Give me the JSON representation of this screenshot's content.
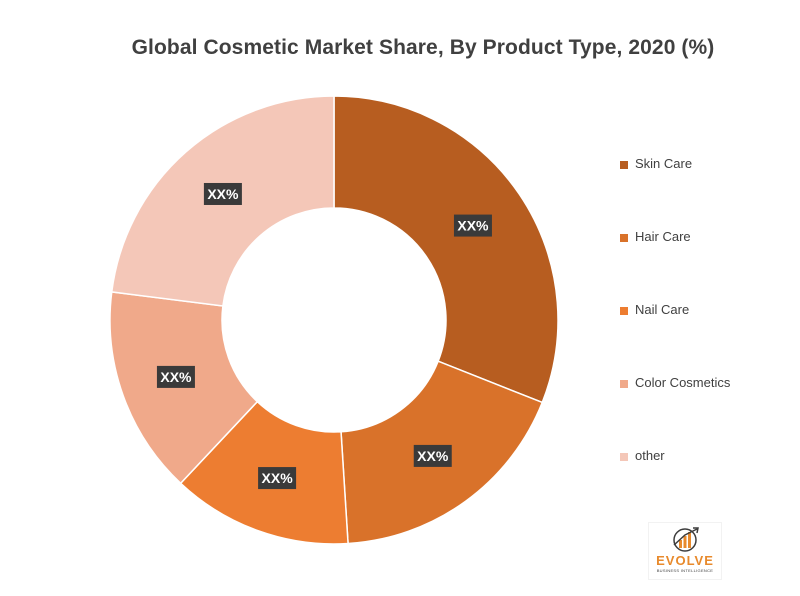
{
  "chart_data": {
    "type": "pie",
    "title": "Global Cosmetic Market Share, By Product Type, 2020 (%)",
    "donut": true,
    "categories": [
      "Skin Care",
      "Hair Care",
      "Nail Care",
      "Color Cosmetics",
      "other"
    ],
    "values": [
      31,
      18,
      13,
      15,
      23
    ],
    "data_labels": [
      "XX%",
      "XX%",
      "XX%",
      "XX%",
      "XX%"
    ],
    "colors": [
      "#b75d20",
      "#d9722a",
      "#ed7d31",
      "#f0a98a",
      "#f4c7b8"
    ],
    "legend_position": "right"
  },
  "logo": {
    "word": "EVOLVE",
    "tagline": "BUSINESS INTELLIGENCE",
    "accent": "#e88a2c"
  }
}
